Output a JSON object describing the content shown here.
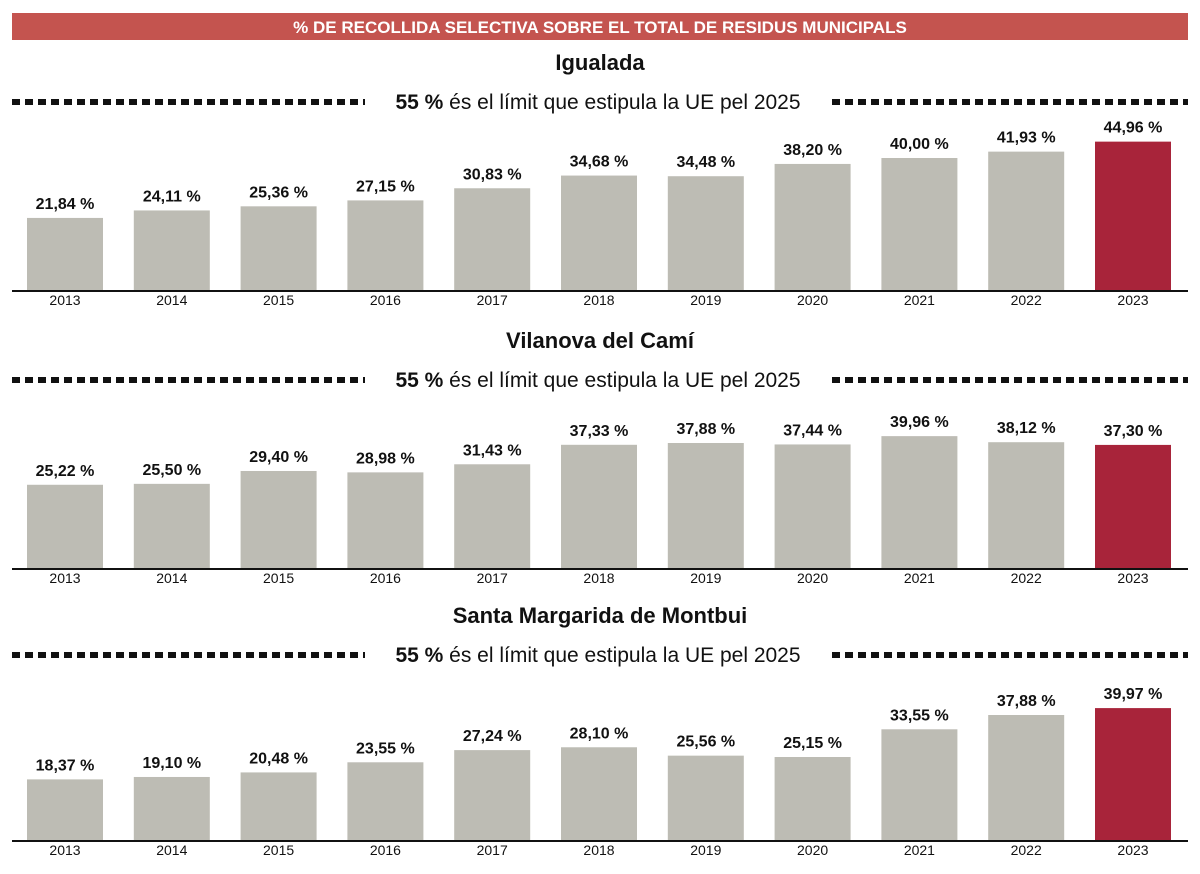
{
  "header": {
    "title": "% DE RECOLLIDA SELECTIVA SOBRE EL TOTAL DE RESIDUS MUNICIPALS"
  },
  "colors": {
    "header_bg": "#c4544f",
    "bar": "#bdbcb4",
    "highlight_bar": "#a8243a",
    "reference_line": "#111111"
  },
  "chart_data": [
    {
      "type": "bar",
      "title": "Igualada",
      "reference_line": {
        "value": 55,
        "label_bold": "55 %",
        "label": " és el límit que estipula la UE pel 2025",
        "style": "dashed"
      },
      "categories": [
        "2013",
        "2014",
        "2015",
        "2016",
        "2017",
        "2018",
        "2019",
        "2020",
        "2021",
        "2022",
        "2023"
      ],
      "values": [
        21.84,
        24.11,
        25.36,
        27.15,
        30.83,
        34.68,
        34.48,
        38.2,
        40.0,
        41.93,
        44.96
      ],
      "labels": [
        "21,84 %",
        "24,11 %",
        "25,36 %",
        "27,15 %",
        "30,83 %",
        "34,68 %",
        "34,48 %",
        "38,20 %",
        "40,00 %",
        "41,93 %",
        "44,96 %"
      ],
      "highlight": "2023"
    },
    {
      "type": "bar",
      "title": "Vilanova del Camí",
      "reference_line": {
        "value": 55,
        "label_bold": "55 %",
        "label": " és el límit que estipula la UE pel 2025",
        "style": "dashed"
      },
      "categories": [
        "2013",
        "2014",
        "2015",
        "2016",
        "2017",
        "2018",
        "2019",
        "2020",
        "2021",
        "2022",
        "2023"
      ],
      "values": [
        25.22,
        25.5,
        29.4,
        28.98,
        31.43,
        37.33,
        37.88,
        37.44,
        39.96,
        38.12,
        37.3
      ],
      "labels": [
        "25,22 %",
        "25,50 %",
        "29,40 %",
        "28,98 %",
        "31,43 %",
        "37,33 %",
        "37,88 %",
        "37,44 %",
        "39,96 %",
        "38,12 %",
        "37,30 %"
      ],
      "highlight": "2023"
    },
    {
      "type": "bar",
      "title": "Santa Margarida de Montbui",
      "reference_line": {
        "value": 55,
        "label_bold": "55 %",
        "label": " és el límit que estipula la UE pel 2025",
        "style": "dashed"
      },
      "categories": [
        "2013",
        "2014",
        "2015",
        "2016",
        "2017",
        "2018",
        "2019",
        "2020",
        "2021",
        "2022",
        "2023"
      ],
      "values": [
        18.37,
        19.1,
        20.48,
        23.55,
        27.24,
        28.1,
        25.56,
        25.15,
        33.55,
        37.88,
        39.97
      ],
      "labels": [
        "18,37 %",
        "19,10 %",
        "20,48 %",
        "23,55 %",
        "27,24 %",
        "28,10 %",
        "25,56 %",
        "25,15 %",
        "33,55 %",
        "37,88 %",
        "39,97 %"
      ],
      "highlight": "2023"
    }
  ]
}
